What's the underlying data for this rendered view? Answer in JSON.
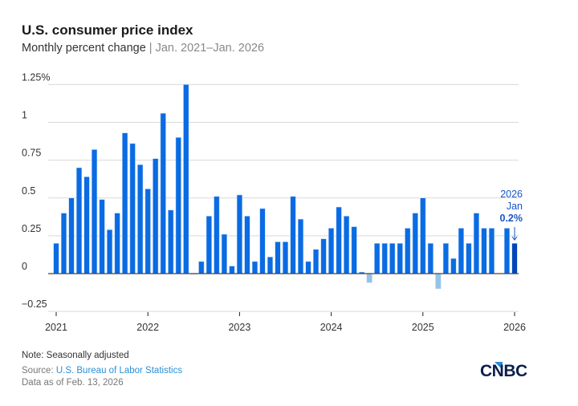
{
  "title": "U.S. consumer price index",
  "subtitle": "Monthly percent change",
  "subtitle_range": "Jan. 2021–Jan. 2026",
  "footer": {
    "note": "Note: Seasonally adjusted",
    "source_label": "Source: ",
    "source_link": "U.S. Bureau of Labor Statistics",
    "data_as_of": "Data as of Feb. 13, 2026"
  },
  "logo": "CNBC",
  "colors": {
    "bar": "#0a6be3",
    "negative": "#93c4e8",
    "latest": "#0046b8",
    "annotation": "#1a55c8"
  },
  "chart_data": {
    "type": "bar",
    "title": "U.S. consumer price index",
    "ylabel": "",
    "xlabel": "",
    "ylim": [
      -0.25,
      1.25
    ],
    "yticks": [
      -0.25,
      0,
      0.25,
      0.5,
      0.75,
      1,
      1.25
    ],
    "ytick_labels": [
      "−0.25",
      "0",
      "0.25",
      "0.5",
      "0.75",
      "1",
      "1.25%"
    ],
    "xtick_labels": [
      "2021",
      "2022",
      "2023",
      "2024",
      "2025",
      "2026"
    ],
    "grid": true,
    "start": "2021-01",
    "end": "2026-01",
    "values": [
      0.2,
      0.4,
      0.5,
      0.7,
      0.64,
      0.82,
      0.49,
      0.29,
      0.4,
      0.93,
      0.86,
      0.72,
      0.56,
      0.76,
      1.06,
      0.42,
      0.9,
      1.25,
      0.0,
      0.08,
      0.38,
      0.51,
      0.26,
      0.05,
      0.52,
      0.38,
      0.08,
      0.43,
      0.11,
      0.21,
      0.21,
      0.51,
      0.36,
      0.08,
      0.16,
      0.23,
      0.3,
      0.44,
      0.38,
      0.31,
      0.01,
      -0.06,
      0.2,
      0.2,
      0.2,
      0.2,
      0.3,
      0.4,
      0.5,
      0.2,
      -0.1,
      0.2,
      0.1,
      0.3,
      0.2,
      0.4,
      0.3,
      0.3,
      null,
      0.3,
      0.2
    ],
    "annotation": {
      "year": "2026",
      "month": "Jan",
      "value": "0.2%"
    }
  }
}
